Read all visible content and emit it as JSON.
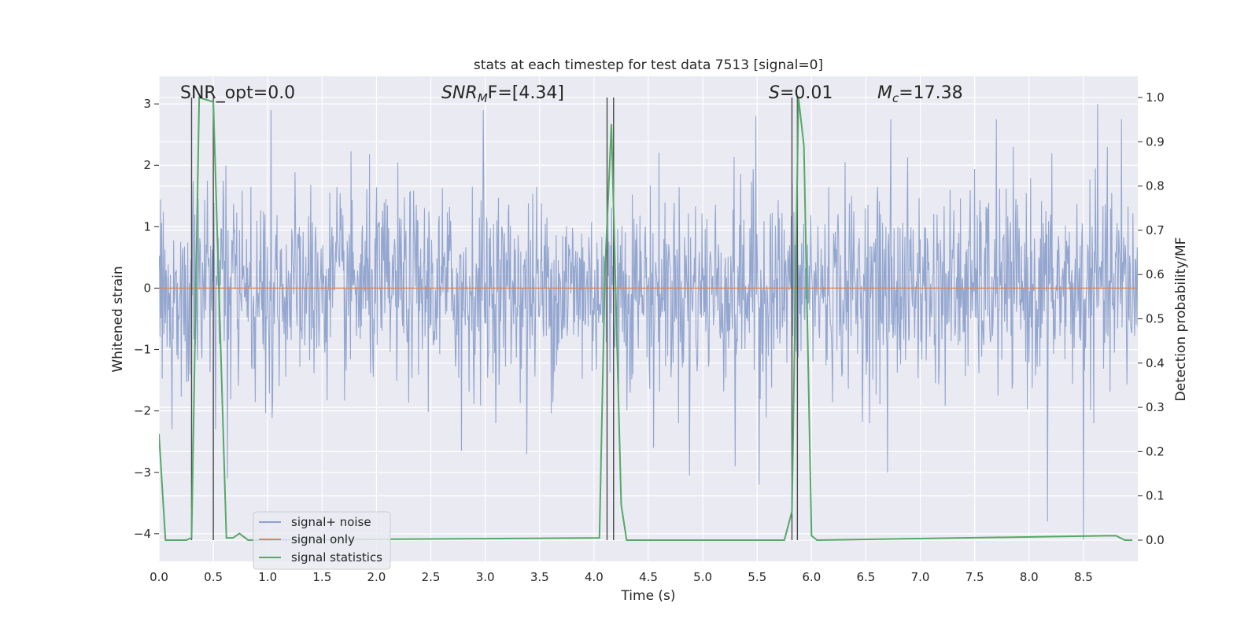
{
  "chart_data": {
    "type": "line",
    "title": "stats at each timestep for test data 7513 [signal=0]",
    "xlabel": "Time (s)",
    "ylabel": "Whitened strain",
    "y2label": "Detection probability/MF",
    "xlim": [
      0.0,
      9.0
    ],
    "ylim": [
      -4.45,
      3.45
    ],
    "y2lim": [
      -0.048,
      1.048
    ],
    "xticks": [
      0.0,
      0.5,
      1.0,
      1.5,
      2.0,
      2.5,
      3.0,
      3.5,
      4.0,
      4.5,
      5.0,
      5.5,
      6.0,
      6.5,
      7.0,
      7.5,
      8.0,
      8.5
    ],
    "xtick_labels": [
      "0.0",
      "0.5",
      "1.0",
      "1.5",
      "2.0",
      "2.5",
      "3.0",
      "3.5",
      "4.0",
      "4.5",
      "5.0",
      "5.5",
      "6.0",
      "6.5",
      "7.0",
      "7.5",
      "8.0",
      "8.5"
    ],
    "yticks": [
      3,
      2,
      1,
      0,
      -1,
      -2,
      -3,
      -4
    ],
    "ytick_labels": [
      "3",
      "2",
      "1",
      "0",
      "−1",
      "−2",
      "−3",
      "−4"
    ],
    "y2ticks": [
      1.0,
      0.9,
      0.8,
      0.7,
      0.6,
      0.5,
      0.4,
      0.3,
      0.2,
      0.1,
      0.0
    ],
    "y2tick_labels": [
      "1.0",
      "0.9",
      "0.8",
      "0.7",
      "0.6",
      "0.5",
      "0.4",
      "0.3",
      "0.2",
      "0.1",
      "0.0"
    ],
    "grid": true,
    "legend_position": "lower-left",
    "annotations": {
      "snr_opt": "SNR_opt=0.0",
      "snr_mf_main": "SNR",
      "snr_mf_sub": "M",
      "snr_mf_rest": "F=[4.34]",
      "s_main": "S",
      "s_rest": "=0.01",
      "mc_main": "M",
      "mc_sub": "c",
      "mc_rest": "=17.38"
    },
    "series": [
      {
        "name": "signal+ noise",
        "color": "#8ea2cc",
        "style": "noise",
        "x_range": [
          0.0,
          9.0
        ],
        "sample_count": 1800,
        "typical_range": [
          -1.6,
          1.9
        ],
        "extremes": [
          {
            "x": 0.12,
            "y": -2.3
          },
          {
            "x": 0.52,
            "y": -2.3
          },
          {
            "x": 0.63,
            "y": -3.1
          },
          {
            "x": 1.03,
            "y": 2.9
          },
          {
            "x": 2.78,
            "y": -2.65
          },
          {
            "x": 2.98,
            "y": 2.9
          },
          {
            "x": 3.38,
            "y": -2.7
          },
          {
            "x": 4.55,
            "y": -2.6
          },
          {
            "x": 4.88,
            "y": -3.05
          },
          {
            "x": 5.3,
            "y": -2.9
          },
          {
            "x": 5.49,
            "y": 2.8
          },
          {
            "x": 5.52,
            "y": -3.2
          },
          {
            "x": 6.7,
            "y": -3.0
          },
          {
            "x": 6.73,
            "y": 2.75
          },
          {
            "x": 8.17,
            "y": -3.8
          },
          {
            "x": 8.5,
            "y": -4.1
          },
          {
            "x": 8.63,
            "y": 3.0
          },
          {
            "x": 8.85,
            "y": -2.8
          },
          {
            "x": 7.7,
            "y": 2.75
          },
          {
            "x": 8.85,
            "y": 2.75
          }
        ]
      },
      {
        "name": "signal only",
        "color": "#dd8452",
        "x": [
          0.0,
          9.0
        ],
        "y": [
          0.0,
          0.0
        ]
      },
      {
        "name": "signal statistics",
        "color": "#55a868",
        "axis": "right",
        "x": [
          0.0,
          0.06,
          0.25,
          0.3,
          0.37,
          0.5,
          0.62,
          0.68,
          0.74,
          0.82,
          4.05,
          4.1,
          4.16,
          4.25,
          4.3,
          5.75,
          5.82,
          5.88,
          5.93,
          6.0,
          6.05,
          8.72,
          8.8,
          8.88,
          8.95
        ],
        "y": [
          0.24,
          0.0,
          0.0,
          0.005,
          1.0,
          0.99,
          0.005,
          0.005,
          0.015,
          0.0,
          0.005,
          0.6,
          0.94,
          0.08,
          0.0,
          0.0,
          0.065,
          1.0,
          0.89,
          0.01,
          0.0,
          0.01,
          0.01,
          0.0,
          0.0
        ]
      }
    ],
    "vertical_markers": [
      0.3,
      0.5,
      4.12,
      4.18,
      5.82,
      5.87
    ]
  }
}
